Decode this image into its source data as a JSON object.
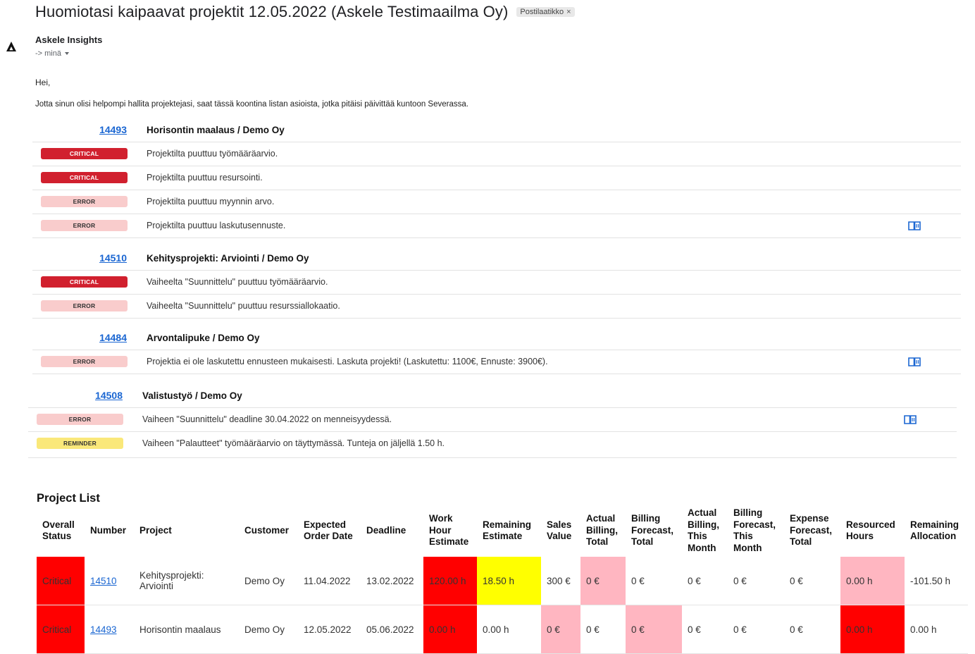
{
  "email": {
    "subject": "Huomiotasi kaipaavat projektit 12.05.2022 (Askele Testimaailma Oy)",
    "label": "Postilaatikko",
    "label_close": "×",
    "sender": "Askele Insights",
    "recipient": "-> minä",
    "greeting": "Hei,",
    "intro": "Jotta sinun olisi helpompi hallita projektejasi, saat tässä koontina listan asioista, jotka pitäisi päivittää kuntoon Severassa."
  },
  "groups": [
    {
      "number": "14493",
      "name": "Horisontin maalaus / Demo Oy",
      "issues": [
        {
          "level": "CRITICAL",
          "text": "Projektilta puuttuu työmääräarvio."
        },
        {
          "level": "CRITICAL",
          "text": "Projektilta puuttuu resursointi."
        },
        {
          "level": "ERROR",
          "text": "Projektilta puuttuu myynnin arvo."
        },
        {
          "level": "ERROR",
          "text": "Projektilta puuttuu laskutusennuste."
        }
      ]
    },
    {
      "number": "14510",
      "name": "Kehitysprojekti: Arviointi / Demo Oy",
      "issues": [
        {
          "level": "CRITICAL",
          "text": "Vaiheelta \"Suunnittelu\" puuttuu työmääräarvio."
        },
        {
          "level": "ERROR",
          "text": "Vaiheelta \"Suunnittelu\" puuttuu resurssiallokaatio."
        }
      ]
    },
    {
      "number": "14484",
      "name": "Arvontalipuke / Demo Oy",
      "issues": [
        {
          "level": "ERROR",
          "text": "Projektia ei ole laskutettu ennusteen mukaisesti. Laskuta projekti! (Laskutettu: 1100€, Ennuste: 3900€)."
        }
      ]
    },
    {
      "number": "14508",
      "name": "Valistustyö / Demo Oy",
      "issues": [
        {
          "level": "ERROR",
          "text": "Vaiheen \"Suunnittelu\" deadline 30.04.2022 on menneisyydessä."
        },
        {
          "level": "REMINDER",
          "text": "Vaiheen \"Palautteet\" työmääräarvio on täyttymässä. Tunteja on jäljellä 1.50 h."
        }
      ]
    }
  ],
  "project_list": {
    "title": "Project List",
    "columns": [
      "Overall Status",
      "Number",
      "Project",
      "Customer",
      "Expected Order Date",
      "Deadline",
      "Work Hour Estimate",
      "Remaining Estimate",
      "Sales Value",
      "Actual Billing, Total",
      "Billing Forecast, Total",
      "Actual Billing, This Month",
      "Billing Forecast, This Month",
      "Expense Forecast, Total",
      "Resourced Hours",
      "Remaining Allocation"
    ],
    "rows": [
      {
        "status": "Critical",
        "number": "14510",
        "project": "Kehitysprojekti: Arviointi",
        "customer": "Demo Oy",
        "expected_order_date": "11.04.2022",
        "deadline": "13.02.2022",
        "work_hour_estimate": "120.00 h",
        "remaining_estimate": "18.50 h",
        "sales_value": "300 €",
        "actual_billing_total": "0 €",
        "billing_forecast_total": "0 €",
        "actual_billing_month": "0 €",
        "billing_forecast_month": "0 €",
        "expense_forecast_total": "0 €",
        "resourced_hours": "0.00 h",
        "remaining_allocation": "-101.50 h"
      },
      {
        "status": "Critical",
        "number": "14493",
        "project": "Horisontin maalaus",
        "customer": "Demo Oy",
        "expected_order_date": "12.05.2022",
        "deadline": "05.06.2022",
        "work_hour_estimate": "0.00 h",
        "remaining_estimate": "0.00 h",
        "sales_value": "0 €",
        "actual_billing_total": "0 €",
        "billing_forecast_total": "0 €",
        "actual_billing_month": "0 €",
        "billing_forecast_month": "0 €",
        "expense_forecast_total": "0 €",
        "resourced_hours": "0.00 h",
        "remaining_allocation": "0.00 h"
      }
    ]
  },
  "colors": {
    "critical_badge": "#d1202e",
    "error_badge": "#f9cccc",
    "reminder_badge": "#fae87a",
    "link": "#1a66d2",
    "cell_red": "#ff0000",
    "cell_pink": "#ffb6c1",
    "cell_yellow": "#ffff00"
  },
  "icons": {
    "logo": "askele-triangle-logo",
    "issue_action": "open-book-icon",
    "recipient_toggle": "caret-down-icon"
  }
}
